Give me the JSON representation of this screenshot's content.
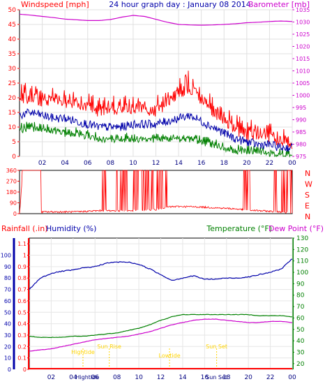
{
  "header": {
    "left_label": "Windspeed [mph]",
    "center_label": "24 hour graph day : January 08 2014",
    "right_label": "Barometer [mb]"
  },
  "wind_panel": {
    "left_ticks": [
      "0",
      "5",
      "10",
      "15",
      "20",
      "25",
      "30",
      "35",
      "40",
      "45",
      "50"
    ],
    "right_ticks": [
      "975",
      "980",
      "985",
      "990",
      "995",
      "1000",
      "1005",
      "1010",
      "1015",
      "1020",
      "1025",
      "1030",
      "1035"
    ]
  },
  "direction_panel": {
    "left_ticks": [
      "0",
      "90",
      "180",
      "270",
      "360"
    ],
    "compass": [
      "N",
      "W",
      "S",
      "E",
      "N"
    ]
  },
  "lower_panel": {
    "rain_label": "Rainfall (.in)",
    "humidity_label": "Humidity (%)",
    "temp_label": "Temperature (°F)",
    "dew_label": "Dew Point (°F)",
    "rain_ticks": [
      "0",
      "0.1",
      "0.2",
      "0.3",
      "0.4",
      "0.5",
      "0.6",
      "0.7",
      "0.8",
      "0.9",
      "1",
      "1.1"
    ],
    "humidity_ticks": [
      "0",
      "10",
      "20",
      "30",
      "40",
      "50",
      "60",
      "70",
      "80",
      "90",
      "100"
    ],
    "temp_ticks": [
      "20",
      "30",
      "40",
      "50",
      "60",
      "70",
      "80",
      "90",
      "100",
      "110",
      "120",
      "130"
    ],
    "events": [
      {
        "label": "Hightide",
        "hour": 4.9
      },
      {
        "label": "Sun Rise",
        "hour": 7.3
      },
      {
        "label": "Lowtide",
        "hour": 12.8
      },
      {
        "label": "Sun Set",
        "hour": 17.1
      }
    ],
    "bottom_event_labels": [
      {
        "label": "Hightide",
        "hour": 5.3
      },
      {
        "label": "Sun Set",
        "hour": 17.1
      }
    ]
  },
  "x_ticks": [
    "02",
    "04",
    "06",
    "08",
    "10",
    "12",
    "14",
    "16",
    "18",
    "20",
    "22",
    "00"
  ],
  "colors": {
    "wind_gust": "#ff0000",
    "wind_avg": "#0000aa",
    "wind_speed": "#008000",
    "barometer": "#cc00cc",
    "direction": "#ff0000",
    "rain": "#ff0000",
    "humidity": "#0000aa",
    "temperature": "#008000",
    "dewpoint": "#cc00cc",
    "event": "#ffd400"
  },
  "chart_data": [
    {
      "type": "line",
      "title": "24 hour graph day : January 08 2014",
      "ylabel": "Windspeed [mph]",
      "y2label": "Barometer [mb]",
      "ylim": [
        0,
        50
      ],
      "y2lim": [
        975,
        1035
      ],
      "x_label_unit": "hour",
      "series": [
        {
          "axis": "left",
          "x": [
            0,
            1,
            2,
            3,
            4,
            5,
            6,
            7,
            8,
            9,
            10,
            11,
            12,
            13,
            14,
            15,
            16,
            17,
            18,
            19,
            20,
            21,
            22,
            23,
            24
          ],
          "values": [
            20,
            21,
            19,
            20,
            19,
            19,
            17,
            16,
            17,
            16,
            17,
            17,
            16,
            19,
            22,
            24,
            20,
            16,
            13,
            10,
            8,
            8,
            7,
            6,
            5
          ]
        },
        {
          "axis": "left",
          "x": [
            0,
            1,
            2,
            3,
            4,
            5,
            6,
            7,
            8,
            9,
            10,
            11,
            12,
            13,
            14,
            15,
            16,
            17,
            18,
            19,
            20,
            21,
            22,
            23,
            24
          ],
          "values": [
            14,
            15,
            14,
            13,
            13,
            12,
            11,
            10,
            10,
            10,
            11,
            11,
            11,
            12,
            13,
            14,
            12,
            10,
            8,
            6,
            5,
            4,
            4,
            3,
            3
          ]
        },
        {
          "axis": "left",
          "x": [
            0,
            1,
            2,
            3,
            4,
            5,
            6,
            7,
            8,
            9,
            10,
            11,
            12,
            13,
            14,
            15,
            16,
            17,
            18,
            19,
            20,
            21,
            22,
            23,
            24
          ],
          "values": [
            9,
            10,
            9,
            9,
            8,
            8,
            7,
            6,
            6,
            6,
            6,
            6,
            6,
            6,
            6,
            6,
            5,
            4,
            3,
            2,
            2,
            2,
            1,
            1,
            1
          ]
        },
        {
          "axis": "right",
          "x": [
            0,
            1,
            2,
            3,
            4,
            5,
            6,
            7,
            8,
            9,
            10,
            11,
            12,
            13,
            14,
            15,
            16,
            17,
            18,
            19,
            20,
            21,
            22,
            23,
            24
          ],
          "values": [
            1033.2,
            1032.8,
            1032.3,
            1031.8,
            1031.2,
            1030.9,
            1030.6,
            1030.6,
            1031.0,
            1032.0,
            1032.7,
            1032.3,
            1031.1,
            1029.9,
            1029.0,
            1028.8,
            1028.7,
            1028.8,
            1029.0,
            1029.3,
            1029.7,
            1029.9,
            1030.2,
            1030.4,
            1030.2
          ]
        }
      ]
    },
    {
      "type": "scatter",
      "ylabel": "Wind direction",
      "ylim": [
        0,
        360
      ],
      "series": [
        {
          "x": [
            0.0,
            0.3,
            0.9,
            1.2,
            1.7,
            2.2,
            3.0,
            4.0,
            5.0,
            6.0,
            7.0,
            8.0,
            9.0,
            10.0,
            11.0,
            12.0,
            12.5,
            13.0,
            14.0,
            15.0,
            16.0,
            17.0,
            18.0,
            19.0,
            20.0,
            21.0,
            22.0,
            23.0,
            24.0
          ],
          "values": [
            0,
            360,
            360,
            360,
            10,
            15,
            15,
            15,
            15,
            20,
            25,
            25,
            25,
            25,
            30,
            35,
            45,
            55,
            60,
            58,
            55,
            50,
            45,
            40,
            30,
            25,
            20,
            15,
            5
          ]
        }
      ]
    },
    {
      "type": "line",
      "ylabel": "Rainfall (.in) / Humidity (%)",
      "y2label": "Temperature (°F)",
      "ylim": [
        0,
        1.15
      ],
      "humidity_ylim": [
        0,
        100
      ],
      "y2lim": [
        15,
        130
      ],
      "series": [
        {
          "axis": "rain",
          "x": [
            0,
            24
          ],
          "values": [
            0,
            0
          ]
        },
        {
          "axis": "humidity",
          "x": [
            0,
            1,
            2,
            3,
            4,
            5,
            6,
            7,
            8,
            9,
            10,
            11,
            12,
            13,
            14,
            15,
            16,
            17,
            18,
            19,
            20,
            21,
            22,
            23,
            24
          ],
          "values": [
            70,
            80,
            84,
            86,
            87,
            89,
            90,
            93,
            94,
            94,
            92,
            88,
            83,
            78,
            80,
            82,
            79,
            79,
            80,
            80,
            81,
            83,
            85,
            88,
            97
          ]
        },
        {
          "axis": "temperature",
          "x": [
            0,
            1,
            2,
            3,
            4,
            5,
            6,
            7,
            8,
            9,
            10,
            11,
            12,
            13,
            14,
            15,
            16,
            17,
            18,
            19,
            20,
            21,
            22,
            23,
            24
          ],
          "values": [
            44,
            43,
            43,
            43,
            44,
            44,
            45,
            46,
            47,
            49,
            51,
            54,
            58,
            61,
            63,
            63,
            63,
            63,
            63,
            63,
            63,
            62,
            62,
            62,
            61
          ]
        },
        {
          "axis": "temperature",
          "x": [
            0,
            1,
            2,
            3,
            4,
            5,
            6,
            7,
            8,
            9,
            10,
            11,
            12,
            13,
            14,
            15,
            16,
            17,
            18,
            19,
            20,
            21,
            22,
            23,
            24
          ],
          "values": [
            31,
            32,
            33,
            35,
            37,
            39,
            41,
            42,
            43,
            44,
            46,
            48,
            51,
            54,
            56,
            58,
            59,
            59,
            58,
            57,
            56,
            56,
            57,
            57,
            56
          ]
        }
      ]
    }
  ]
}
